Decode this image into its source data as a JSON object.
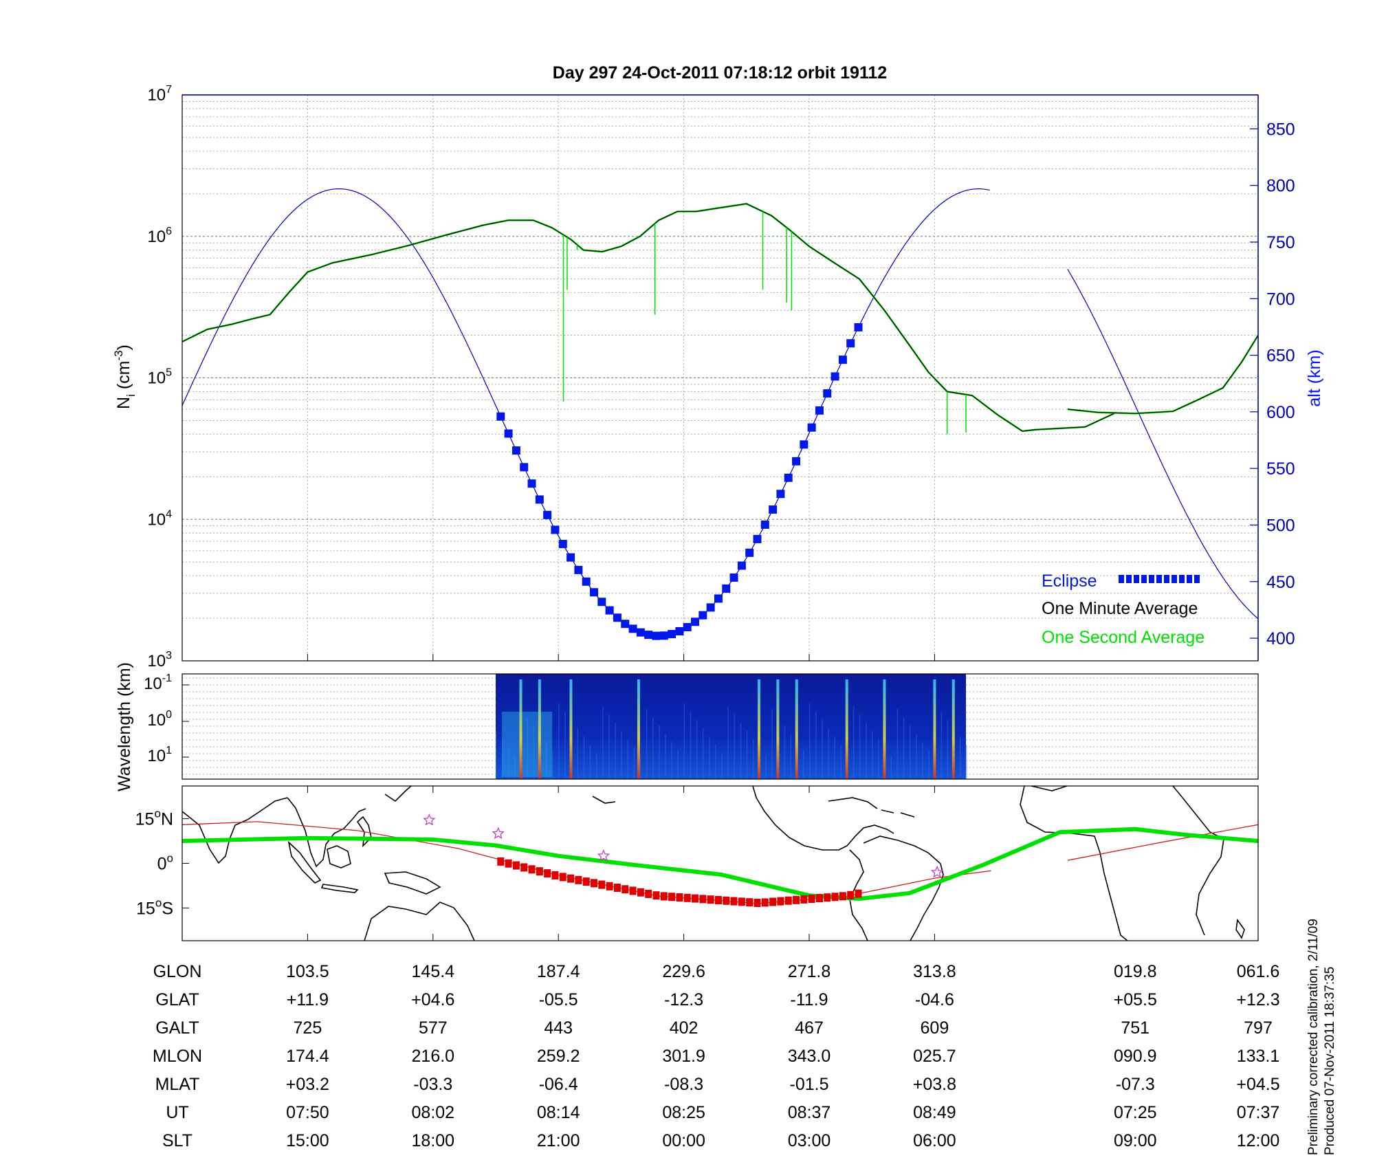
{
  "title": "Day 297  24-Oct-2011 07:18:12   orbit 19112",
  "footer": {
    "line1": "Preliminary corrected calibration, 2/11/09",
    "line2": "Produced 07-Nov-2011 18:37:35"
  },
  "colors": {
    "altitude": "#0000b0",
    "eclipse": "#0018e8",
    "one_minute": "#000000",
    "one_second": "#00e000",
    "track_eclipse": "#e00000",
    "ground_track": "#00e000",
    "thin_track": "#cc2020",
    "stars": "#c040c0"
  },
  "chart_data": [
    {
      "type": "line",
      "panel": "ion density",
      "ylabel": "N",
      "ylabel_sub": "i",
      "ylabel_unit_open": "(cm",
      "ylabel_unit_exp": "-3",
      "ylabel_unit_close": ")",
      "yscale": "log",
      "ylim": [
        1000,
        10000000
      ],
      "y_ticks": [
        {
          "base": "10",
          "exp": "3"
        },
        {
          "base": "10",
          "exp": "4"
        },
        {
          "base": "10",
          "exp": "5"
        },
        {
          "base": "10",
          "exp": "6"
        },
        {
          "base": "10",
          "exp": "7"
        }
      ],
      "y2label": "alt (km)",
      "y2lim": [
        380,
        880
      ],
      "y2_ticks": [
        "400",
        "450",
        "500",
        "550",
        "600",
        "650",
        "700",
        "750",
        "800",
        "850"
      ],
      "xlim": [
        0,
        8.58
      ],
      "legend_position": "lower-right",
      "legend": [
        {
          "label": "Eclipse",
          "color": "#0018e8"
        },
        {
          "label": "One Minute Average",
          "color": "#000000"
        },
        {
          "label": "One Second Average",
          "color": "#00e000"
        }
      ],
      "series": [
        {
          "name": "One Minute Average",
          "segments": [
            {
              "x": [
                0,
                0.2,
                0.4,
                0.55,
                0.7,
                0.85,
                1.0,
                1.2,
                1.5,
                1.8,
                2.1,
                2.4,
                2.6,
                2.8,
                2.95,
                3.1,
                3.2,
                3.35,
                3.5,
                3.65,
                3.8,
                3.95,
                4.1,
                4.3,
                4.5,
                4.7,
                4.85,
                5.0,
                5.2,
                5.4,
                5.6,
                5.8,
                5.95,
                6.1,
                6.3,
                6.5,
                6.7,
                6.8,
                7.0,
                7.2,
                7.45
              ],
              "y": [
                180000,
                220000,
                240000,
                260000,
                280000,
                400000,
                560000,
                650000,
                740000,
                860000,
                1020000,
                1200000,
                1300000,
                1300000,
                1150000,
                950000,
                800000,
                780000,
                850000,
                1000000,
                1300000,
                1500000,
                1500000,
                1600000,
                1700000,
                1400000,
                1100000,
                850000,
                650000,
                500000,
                300000,
                170000,
                110000,
                80000,
                75000,
                55000,
                42000,
                43000,
                44000,
                45000,
                57000
              ]
            },
            {
              "x": [
                7.06,
                7.3,
                7.6,
                7.9,
                8.1,
                8.3,
                8.45,
                8.58
              ],
              "y": [
                60000,
                57000,
                56000,
                58000,
                70000,
                85000,
                130000,
                200000
              ]
            }
          ]
        },
        {
          "name": "One Second Average",
          "spikes": [
            {
              "x": 3.04,
              "y": 68000
            },
            {
              "x": 3.07,
              "y": 420000
            },
            {
              "x": 3.15,
              "y": 800000
            },
            {
              "x": 3.77,
              "y": 280000
            },
            {
              "x": 4.63,
              "y": 420000
            },
            {
              "x": 4.82,
              "y": 340000
            },
            {
              "x": 4.86,
              "y": 300000
            },
            {
              "x": 6.1,
              "y": 40000
            },
            {
              "x": 6.25,
              "y": 41000
            },
            {
              "x": 8.25,
              "y": 80000
            }
          ]
        },
        {
          "name": "alt (km)",
          "axis": "right",
          "segments": [
            {
              "x_start": 0,
              "x_end": 6.45,
              "period_x": 5.1,
              "apogee_km": 797,
              "perigee_km": 402,
              "perigee_x": 3.8
            },
            {
              "x_start": 7.06,
              "x_end": 8.58,
              "period_x": 5.1,
              "apogee_km": 797,
              "perigee_km": 402,
              "perigee_x": 3.8
            }
          ]
        },
        {
          "name": "Eclipse",
          "x_range": [
            2.54,
            5.4
          ]
        }
      ]
    },
    {
      "type": "heatmap",
      "panel": "spectrogram",
      "ylabel": "Wavelength (km)",
      "y_ticks": [
        {
          "base": "10",
          "exp": "-1"
        },
        {
          "base": "10",
          "exp": "0"
        },
        {
          "base": "10",
          "exp": "1"
        }
      ],
      "x_range": [
        2.5,
        6.25
      ],
      "bright_columns_x": [
        2.7,
        2.85,
        3.1,
        3.64,
        4.6,
        4.75,
        4.9,
        5.3,
        5.6,
        6.0,
        6.15
      ]
    },
    {
      "type": "line",
      "panel": "ground track",
      "y_ticks": [
        {
          "value": "15",
          "unit": "o",
          "hemi": "N"
        },
        {
          "value": "0",
          "unit": "o",
          "hemi": ""
        },
        {
          "value": "15",
          "unit": "o",
          "hemi": "S"
        }
      ],
      "ylim": [
        -26,
        26
      ],
      "series": [
        {
          "name": "ground track",
          "x": [
            0,
            1.0,
            2.0,
            2.5,
            3.0,
            3.6,
            4.3,
            5.0,
            5.4,
            5.8,
            6.0,
            6.4,
            7.0,
            7.6,
            8.0,
            8.58
          ],
          "y": [
            7.5,
            8.5,
            8.0,
            6.0,
            2.5,
            -0.5,
            -3.8,
            -10.8,
            -11.9,
            -10.0,
            -6.8,
            -0.3,
            10.5,
            11.5,
            9.6,
            7.5
          ]
        },
        {
          "name": "eclipse track",
          "x_range": [
            2.54,
            5.4
          ]
        },
        {
          "name": "thin track",
          "segments": [
            {
              "x": [
                0,
                0.6,
                1.4,
                2.2,
                3.0,
                3.8,
                4.6,
                5.3,
                6.0,
                6.45
              ],
              "y": [
                13,
                14,
                11,
                5,
                -4,
                -11,
                -13.5,
                -11,
                -5,
                -2.5
              ]
            },
            {
              "x": [
                7.06,
                7.8,
                8.58
              ],
              "y": [
                1,
                7,
                13
              ]
            }
          ]
        },
        {
          "name": "stars",
          "points": [
            {
              "x": 1.97,
              "y": 14.5
            },
            {
              "x": 2.52,
              "y": 10
            },
            {
              "x": 3.36,
              "y": 2.5
            },
            {
              "x": 6.02,
              "y": -3
            }
          ]
        }
      ]
    },
    {
      "type": "table",
      "rows": [
        {
          "label": "GLON",
          "values": [
            "103.5",
            "145.4",
            "187.4",
            "229.6",
            "271.8",
            "313.8",
            "019.8",
            "061.6"
          ]
        },
        {
          "label": "GLAT",
          "values": [
            "+11.9",
            "+04.6",
            "-05.5",
            "-12.3",
            "-11.9",
            "-04.6",
            "+05.5",
            "+12.3"
          ]
        },
        {
          "label": "GALT",
          "values": [
            "725",
            "577",
            "443",
            "402",
            "467",
            "609",
            "751",
            "797"
          ]
        },
        {
          "label": "MLON",
          "values": [
            "174.4",
            "216.0",
            "259.2",
            "301.9",
            "343.0",
            "025.7",
            "090.9",
            "133.1"
          ]
        },
        {
          "label": "MLAT",
          "values": [
            "+03.2",
            "-03.3",
            "-06.4",
            "-08.3",
            "-01.5",
            "+03.8",
            "-07.3",
            "+04.5"
          ]
        },
        {
          "label": "UT",
          "values": [
            "07:50",
            "08:02",
            "08:14",
            "08:25",
            "08:37",
            "08:49",
            "07:25",
            "07:37"
          ]
        },
        {
          "label": "SLT",
          "values": [
            "15:00",
            "18:00",
            "21:00",
            "00:00",
            "03:00",
            "06:00",
            "09:00",
            "12:00"
          ]
        }
      ],
      "column_x": [
        1,
        2,
        3,
        4,
        5,
        6,
        7.6,
        8.58
      ]
    }
  ]
}
